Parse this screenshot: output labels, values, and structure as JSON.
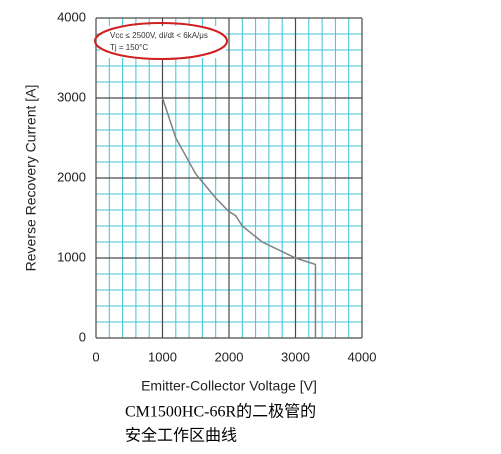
{
  "chart_data": {
    "type": "line",
    "x_label": "Emitter-Collector Voltage [V]",
    "y_label": "Reverse Recovery Current [A]",
    "annotations": [
      "Vcc ≤ 2500V, di/dt < 6kA/μs",
      "Tj = 150°C"
    ],
    "caption": [
      "CM1500HC-66R的二极管的",
      "安全工作区曲线"
    ],
    "xlim": [
      0,
      4000
    ],
    "ylim": [
      0,
      4000
    ],
    "xticks": [
      0,
      1000,
      2000,
      3000,
      4000
    ],
    "yticks": [
      0,
      1000,
      2000,
      3000,
      4000
    ],
    "grid": true,
    "series": [
      {
        "color": "#808080",
        "x": [
          1000,
          1200,
          1500,
          1800,
          2000,
          2100,
          2200,
          2500,
          3000,
          3300,
          3300
        ],
        "values": [
          3000,
          2500,
          2050,
          1750,
          1580,
          1530,
          1400,
          1200,
          1000,
          920,
          0
        ]
      }
    ]
  }
}
